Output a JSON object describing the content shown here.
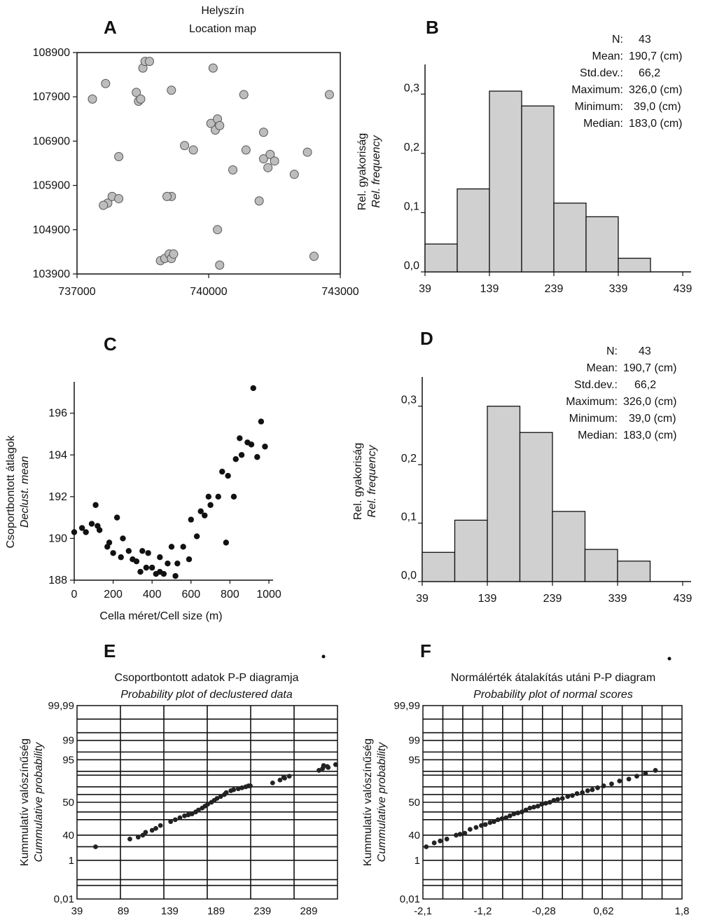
{
  "charts": {
    "A": {
      "letter": "A",
      "title": "Helyszín",
      "subtitle": "Location map",
      "xticks": [
        "737000",
        "740000",
        "743000"
      ],
      "yticks": [
        "108900",
        "107900",
        "106900",
        "105900",
        "104900",
        "103900"
      ]
    },
    "B": {
      "letter": "B",
      "ylabel_hu": "Rel. gyakoriság",
      "ylabel_en": "Rel. frequency",
      "yticks": [
        "0,0",
        "0,1",
        "0,2",
        "0,3"
      ],
      "xticks": [
        "39",
        "139",
        "239",
        "339",
        "439"
      ],
      "stats": [
        {
          "label": "N:",
          "value": "43"
        },
        {
          "label": "Mean:",
          "value": "190,7 (cm)"
        },
        {
          "label": "Std.dev.:",
          "value": "66,2"
        },
        {
          "label": "Maximum:",
          "value": "326,0 (cm)"
        },
        {
          "label": "Minimum:",
          "value": "39,0 (cm)"
        },
        {
          "label": "Median:",
          "value": "183,0 (cm)"
        }
      ]
    },
    "C": {
      "letter": "C",
      "ylabel_hu": "Csoportbontott átlagok",
      "ylabel_en": "Declust. mean",
      "xlabel": "Cella méret/Cell size (m)",
      "yticks": [
        "188",
        "190",
        "192",
        "194",
        "196"
      ],
      "xticks": [
        "0",
        "200",
        "400",
        "600",
        "800",
        "1000"
      ]
    },
    "D": {
      "letter": "D",
      "ylabel_hu": "Rel. gyakoriság",
      "ylabel_en": "Rel. frequency",
      "yticks": [
        "0,0",
        "0,1",
        "0,2",
        "0,3"
      ],
      "xticks": [
        "39",
        "139",
        "239",
        "339",
        "439"
      ],
      "stats": [
        {
          "label": "N:",
          "value": "43"
        },
        {
          "label": "Mean:",
          "value": "190,7 (cm)"
        },
        {
          "label": "Std.dev.:",
          "value": "66,2"
        },
        {
          "label": "Maximum:",
          "value": "326,0 (cm)"
        },
        {
          "label": "Minimum:",
          "value": "39,0 (cm)"
        },
        {
          "label": "Median:",
          "value": "183,0 (cm)"
        }
      ]
    },
    "E": {
      "letter": "E",
      "title_hu": "Csoportbontott adatok P-P diagramja",
      "title_en": "Probability plot of declustered data",
      "ylabel_hu": "Kummulatív valószínűség",
      "ylabel_en": "Cummulative probability",
      "yticks": [
        "0,01",
        "1",
        "40",
        "50",
        "95",
        "99",
        "99,99"
      ],
      "xticks": [
        "39",
        "89",
        "139",
        "189",
        "239",
        "289"
      ]
    },
    "F": {
      "letter": "F",
      "title_hu": "Normálérték átalakítás utáni P-P diagram",
      "title_en": "Probability plot of normal scores",
      "ylabel_hu": "Kummulatív valószínűség",
      "ylabel_en": "Cummulative probability",
      "yticks": [
        "0,01",
        "1",
        "40",
        "50",
        "95",
        "99",
        "99,99"
      ],
      "xticks": [
        "-2,1",
        "-1,2",
        "-0,28",
        "0,62",
        "1,8"
      ]
    }
  },
  "chart_data": [
    {
      "panel": "A",
      "type": "scatter",
      "title": "Helyszín / Location map",
      "xlim": [
        737000,
        743000
      ],
      "ylim": [
        103900,
        108900
      ],
      "points": [
        [
          737000,
          107850
        ],
        [
          737300,
          108200
        ],
        [
          737600,
          106550
        ],
        [
          737350,
          105500
        ],
        [
          737450,
          105650
        ],
        [
          737600,
          105600
        ],
        [
          738000,
          108000
        ],
        [
          738050,
          107800
        ],
        [
          738100,
          107850
        ],
        [
          738150,
          108550
        ],
        [
          738200,
          108700
        ],
        [
          738300,
          108700
        ],
        [
          738550,
          104200
        ],
        [
          738650,
          104250
        ],
        [
          738750,
          104350
        ],
        [
          738800,
          104250
        ],
        [
          738850,
          104350
        ],
        [
          738800,
          105650
        ],
        [
          738800,
          108050
        ],
        [
          739100,
          106800
        ],
        [
          739750,
          108550
        ],
        [
          739700,
          107300
        ],
        [
          739800,
          107150
        ],
        [
          739850,
          107400
        ],
        [
          739900,
          107250
        ],
        [
          739850,
          104900
        ],
        [
          739900,
          104100
        ],
        [
          740200,
          106250
        ],
        [
          740500,
          106700
        ],
        [
          740450,
          107950
        ],
        [
          740800,
          105550
        ],
        [
          740900,
          107100
        ],
        [
          740900,
          106500
        ],
        [
          741050,
          106600
        ],
        [
          741150,
          106450
        ],
        [
          741000,
          106300
        ],
        [
          741600,
          106150
        ],
        [
          741900,
          106650
        ],
        [
          742050,
          104300
        ],
        [
          742400,
          107950
        ],
        [
          739300,
          106700
        ],
        [
          738700,
          105650
        ],
        [
          737250,
          105450
        ]
      ]
    },
    {
      "panel": "B",
      "type": "bar",
      "title": "",
      "xlabel": "",
      "ylabel": "Rel. gyakoriság / Rel. frequency",
      "bin_edges": [
        39,
        89,
        139,
        189,
        239,
        289,
        339,
        389
      ],
      "values": [
        0.047,
        0.14,
        0.305,
        0.28,
        0.116,
        0.093,
        0.023
      ],
      "ylim": [
        0,
        0.35
      ],
      "xlim": [
        39,
        439
      ]
    },
    {
      "panel": "C",
      "type": "scatter",
      "title": "",
      "xlabel": "Cella méret/Cell size (m)",
      "ylabel": "Csoportbontott átlagok / Declust. mean",
      "xlim": [
        0,
        1000
      ],
      "ylim": [
        188,
        197.5
      ],
      "points": [
        [
          0,
          190.3
        ],
        [
          40,
          190.5
        ],
        [
          60,
          190.3
        ],
        [
          90,
          190.7
        ],
        [
          110,
          191.6
        ],
        [
          120,
          190.6
        ],
        [
          130,
          190.4
        ],
        [
          170,
          189.6
        ],
        [
          180,
          189.8
        ],
        [
          200,
          189.3
        ],
        [
          220,
          191.0
        ],
        [
          240,
          189.1
        ],
        [
          250,
          190.0
        ],
        [
          280,
          189.4
        ],
        [
          300,
          189.0
        ],
        [
          320,
          188.9
        ],
        [
          340,
          188.4
        ],
        [
          350,
          189.4
        ],
        [
          370,
          188.6
        ],
        [
          380,
          189.3
        ],
        [
          400,
          188.6
        ],
        [
          420,
          188.3
        ],
        [
          440,
          189.1
        ],
        [
          440,
          188.4
        ],
        [
          460,
          188.3
        ],
        [
          480,
          188.8
        ],
        [
          500,
          189.6
        ],
        [
          520,
          188.2
        ],
        [
          530,
          188.8
        ],
        [
          560,
          189.6
        ],
        [
          590,
          189.0
        ],
        [
          600,
          190.9
        ],
        [
          630,
          190.1
        ],
        [
          650,
          191.3
        ],
        [
          670,
          191.1
        ],
        [
          690,
          192.0
        ],
        [
          700,
          191.6
        ],
        [
          740,
          192.0
        ],
        [
          760,
          193.2
        ],
        [
          780,
          189.8
        ],
        [
          790,
          193.0
        ],
        [
          820,
          192.0
        ],
        [
          830,
          193.8
        ],
        [
          850,
          194.8
        ],
        [
          860,
          194.0
        ],
        [
          890,
          194.6
        ],
        [
          910,
          194.5
        ],
        [
          920,
          197.2
        ],
        [
          940,
          193.9
        ],
        [
          960,
          195.6
        ],
        [
          980,
          194.4
        ]
      ]
    },
    {
      "panel": "D",
      "type": "bar",
      "title": "",
      "xlabel": "",
      "ylabel": "Rel. gyakoriság / Rel. frequency",
      "bin_edges": [
        39,
        89,
        139,
        189,
        239,
        289,
        339,
        389
      ],
      "values": [
        0.05,
        0.105,
        0.3,
        0.255,
        0.12,
        0.055,
        0.035
      ],
      "ylim": [
        0,
        0.35
      ],
      "xlim": [
        39,
        439
      ]
    },
    {
      "panel": "E",
      "type": "scatter",
      "title": "Csoportbontott adatok P-P diagramja / Probability plot of declustered data",
      "xlabel": "",
      "ylabel": "Kummulatív valószínűség / Cummulative probability",
      "xlim": [
        39,
        320
      ],
      "ylim": [
        0,
        1
      ],
      "points": [
        [
          59,
          0.27
        ],
        [
          96,
          0.31
        ],
        [
          105,
          0.32
        ],
        [
          110,
          0.33
        ],
        [
          113,
          0.345
        ],
        [
          120,
          0.355
        ],
        [
          124,
          0.365
        ],
        [
          129,
          0.38
        ],
        [
          140,
          0.4
        ],
        [
          145,
          0.41
        ],
        [
          150,
          0.42
        ],
        [
          155,
          0.43
        ],
        [
          159,
          0.435
        ],
        [
          163,
          0.44
        ],
        [
          167,
          0.45
        ],
        [
          170,
          0.46
        ],
        [
          174,
          0.47
        ],
        [
          177,
          0.48
        ],
        [
          180,
          0.49
        ],
        [
          184,
          0.5
        ],
        [
          187,
          0.51
        ],
        [
          190,
          0.52
        ],
        [
          194,
          0.53
        ],
        [
          198,
          0.54
        ],
        [
          200,
          0.55
        ],
        [
          205,
          0.56
        ],
        [
          208,
          0.565
        ],
        [
          213,
          0.57
        ],
        [
          217,
          0.575
        ],
        [
          221,
          0.58
        ],
        [
          224,
          0.585
        ],
        [
          226,
          0.585
        ],
        [
          250,
          0.6
        ],
        [
          258,
          0.615
        ],
        [
          263,
          0.625
        ],
        [
          268,
          0.635
        ],
        [
          300,
          0.665
        ],
        [
          304,
          0.675
        ],
        [
          310,
          0.68
        ],
        [
          318,
          0.695
        ],
        [
          305,
          0.69
        ],
        [
          262,
          0.63
        ],
        [
          309,
          0.685
        ]
      ]
    },
    {
      "panel": "F",
      "type": "scatter",
      "title": "Normálérték átalakítás utáni P-P diagram / Probability plot of normal scores",
      "xlabel": "",
      "ylabel": "Kummulatív valószínűség / Cummulative probability",
      "xlim": [
        -2.1,
        1.8
      ],
      "ylim": [
        0,
        1
      ],
      "points": [
        [
          -2.05,
          0.27
        ],
        [
          -1.93,
          0.29
        ],
        [
          -1.84,
          0.3
        ],
        [
          -1.74,
          0.31
        ],
        [
          -1.6,
          0.33
        ],
        [
          -1.54,
          0.335
        ],
        [
          -1.47,
          0.34
        ],
        [
          -1.39,
          0.36
        ],
        [
          -1.3,
          0.37
        ],
        [
          -1.22,
          0.38
        ],
        [
          -1.16,
          0.385
        ],
        [
          -1.09,
          0.395
        ],
        [
          -1.03,
          0.4
        ],
        [
          -0.97,
          0.41
        ],
        [
          -0.91,
          0.415
        ],
        [
          -0.85,
          0.42
        ],
        [
          -0.79,
          0.43
        ],
        [
          -0.73,
          0.44
        ],
        [
          -0.67,
          0.445
        ],
        [
          -0.61,
          0.45
        ],
        [
          -0.55,
          0.46
        ],
        [
          -0.49,
          0.47
        ],
        [
          -0.43,
          0.475
        ],
        [
          -0.37,
          0.48
        ],
        [
          -0.31,
          0.49
        ],
        [
          -0.25,
          0.495
        ],
        [
          -0.19,
          0.5
        ],
        [
          -0.13,
          0.51
        ],
        [
          -0.07,
          0.515
        ],
        [
          0.0,
          0.52
        ],
        [
          0.08,
          0.53
        ],
        [
          0.15,
          0.535
        ],
        [
          0.22,
          0.545
        ],
        [
          0.3,
          0.55
        ],
        [
          0.38,
          0.56
        ],
        [
          0.45,
          0.565
        ],
        [
          0.53,
          0.575
        ],
        [
          0.62,
          0.585
        ],
        [
          0.74,
          0.595
        ],
        [
          0.86,
          0.61
        ],
        [
          1.0,
          0.62
        ],
        [
          1.12,
          0.635
        ],
        [
          1.25,
          0.65
        ],
        [
          1.4,
          0.665
        ]
      ]
    }
  ]
}
